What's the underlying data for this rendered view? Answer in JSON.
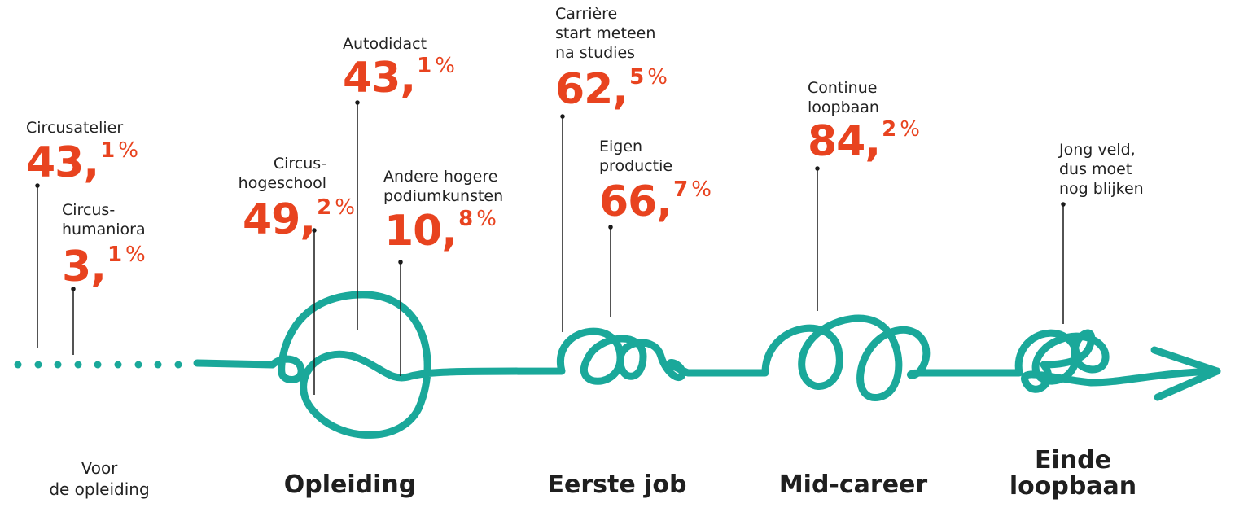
{
  "colors": {
    "line": "#1aa89a",
    "accent": "#e8431f",
    "text": "#222222"
  },
  "stages": [
    {
      "id": "voor",
      "title": "Voor\nde opleiding"
    },
    {
      "id": "opleiding",
      "title": "Opleiding"
    },
    {
      "id": "eerste_job",
      "title": "Eerste job"
    },
    {
      "id": "mid_career",
      "title": "Mid-career"
    },
    {
      "id": "einde",
      "title": "Einde\nloopbaan"
    }
  ],
  "annotations": [
    {
      "id": "circusatelier",
      "label": "Circusatelier",
      "int": "43",
      "dec": "1",
      "sign": "%"
    },
    {
      "id": "circushumaniora",
      "label": "Circus-\nhumaniora",
      "int": "3",
      "dec": "1",
      "sign": "%"
    },
    {
      "id": "circushogeschool",
      "label": "Circus-\nhogeschool",
      "int": "49",
      "dec": "2",
      "sign": "%"
    },
    {
      "id": "autodidact",
      "label": "Autodidact",
      "int": "43",
      "dec": "1",
      "sign": "%"
    },
    {
      "id": "andere",
      "label": "Andere hogere\npodiumkunsten",
      "int": "10",
      "dec": "8",
      "sign": "%"
    },
    {
      "id": "carriere",
      "label": "Carrière\nstart meteen\nna studies",
      "int": "62",
      "dec": "5",
      "sign": "%"
    },
    {
      "id": "eigen",
      "label": "Eigen\nproductie",
      "int": "66",
      "dec": "7",
      "sign": "%"
    },
    {
      "id": "continue",
      "label": "Continue\nloopbaan",
      "int": "84",
      "dec": "2",
      "sign": "%"
    },
    {
      "id": "jong",
      "label": "Jong veld,\ndus moet\nnog blijken"
    }
  ]
}
